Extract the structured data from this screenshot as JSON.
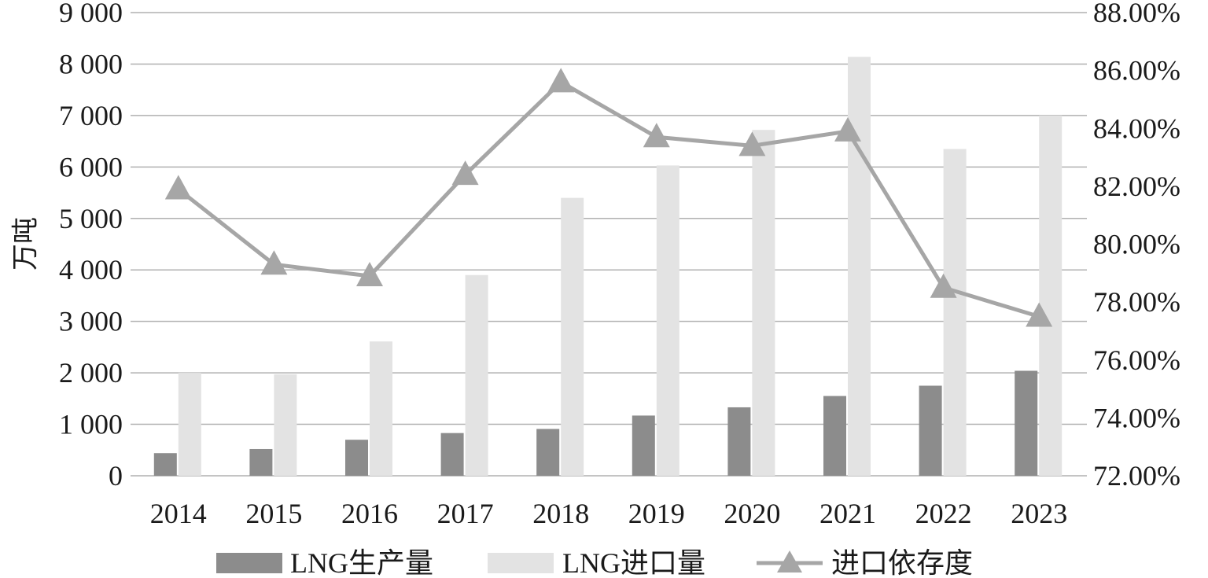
{
  "chart_data": {
    "type": "bar",
    "categories": [
      "2014",
      "2015",
      "2016",
      "2017",
      "2018",
      "2019",
      "2020",
      "2021",
      "2022",
      "2023"
    ],
    "series": [
      {
        "name": "LNG生产量",
        "type": "bar",
        "axis": "left",
        "color": "#8c8c8c",
        "values": [
          440,
          520,
          700,
          830,
          910,
          1170,
          1330,
          1550,
          1750,
          2040
        ]
      },
      {
        "name": "LNG进口量",
        "type": "bar",
        "axis": "left",
        "color": "#e3e3e3",
        "values": [
          2000,
          1970,
          2610,
          3900,
          5400,
          6030,
          6720,
          8140,
          6350,
          7000
        ]
      },
      {
        "name": "进口依存度",
        "type": "line",
        "axis": "right",
        "color": "#a6a6a6",
        "marker": "triangle",
        "values": [
          81.9,
          79.3,
          78.9,
          82.4,
          85.6,
          83.7,
          83.4,
          83.9,
          78.5,
          77.5
        ]
      }
    ],
    "ylabel": "万吨",
    "ylim": [
      0,
      9000
    ],
    "y_ticks": [
      "0",
      "1 000",
      "2 000",
      "3 000",
      "4 000",
      "5 000",
      "6 000",
      "7 000",
      "8 000",
      "9 000"
    ],
    "y2lim": [
      72,
      88
    ],
    "y2_ticks": [
      "72.00%",
      "74.00%",
      "76.00%",
      "78.00%",
      "80.00%",
      "82.00%",
      "84.00%",
      "86.00%",
      "88.00%"
    ],
    "grid": true,
    "legend_position": "bottom"
  }
}
